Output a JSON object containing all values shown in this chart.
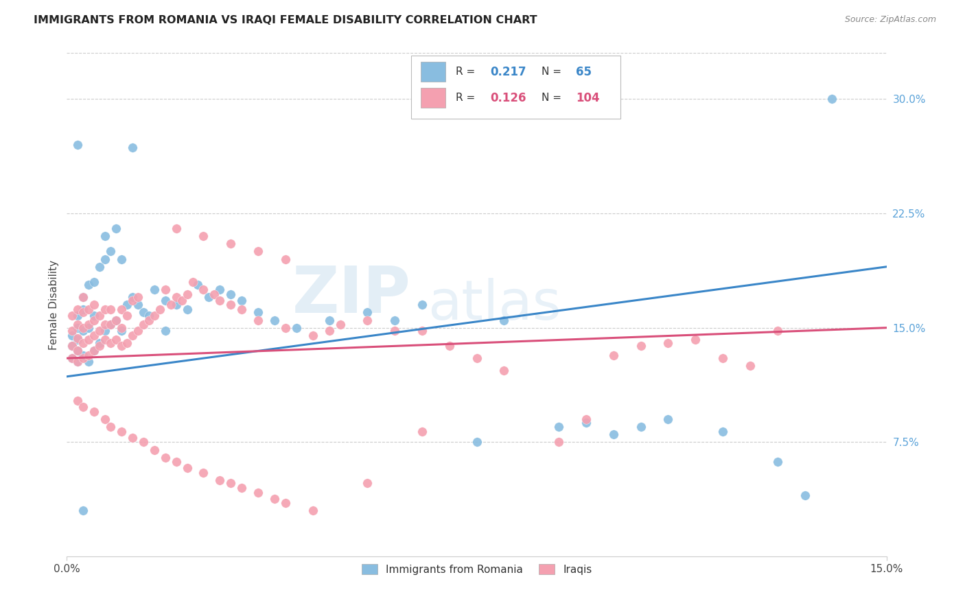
{
  "title": "IMMIGRANTS FROM ROMANIA VS IRAQI FEMALE DISABILITY CORRELATION CHART",
  "source": "Source: ZipAtlas.com",
  "ylabel": "Female Disability",
  "right_yticks": [
    "30.0%",
    "22.5%",
    "15.0%",
    "7.5%"
  ],
  "right_ytick_vals": [
    0.3,
    0.225,
    0.15,
    0.075
  ],
  "xmin": 0.0,
  "xmax": 0.15,
  "ymin": 0.0,
  "ymax": 0.33,
  "legend_romania_R": "0.217",
  "legend_romania_N": "65",
  "legend_iraqi_R": "0.126",
  "legend_iraqi_N": "104",
  "color_romania": "#89bde0",
  "color_iraqi": "#f4a0b0",
  "color_romania_line": "#3a86c8",
  "color_iraqi_line": "#d94f7a",
  "watermark_zip": "ZIP",
  "watermark_atlas": "atlas",
  "romania_x": [
    0.001,
    0.001,
    0.001,
    0.002,
    0.002,
    0.002,
    0.002,
    0.002,
    0.003,
    0.003,
    0.003,
    0.003,
    0.004,
    0.004,
    0.004,
    0.005,
    0.005,
    0.005,
    0.006,
    0.006,
    0.007,
    0.007,
    0.007,
    0.008,
    0.008,
    0.009,
    0.009,
    0.01,
    0.01,
    0.011,
    0.012,
    0.013,
    0.014,
    0.015,
    0.016,
    0.018,
    0.02,
    0.022,
    0.024,
    0.026,
    0.028,
    0.03,
    0.032,
    0.035,
    0.038,
    0.042,
    0.048,
    0.055,
    0.06,
    0.065,
    0.075,
    0.08,
    0.09,
    0.095,
    0.1,
    0.105,
    0.11,
    0.12,
    0.13,
    0.135,
    0.14,
    0.002,
    0.003,
    0.012,
    0.018
  ],
  "romania_y": [
    0.13,
    0.138,
    0.145,
    0.128,
    0.135,
    0.142,
    0.15,
    0.158,
    0.132,
    0.148,
    0.162,
    0.17,
    0.128,
    0.15,
    0.178,
    0.135,
    0.158,
    0.18,
    0.14,
    0.19,
    0.148,
    0.195,
    0.21,
    0.152,
    0.2,
    0.155,
    0.215,
    0.148,
    0.195,
    0.165,
    0.17,
    0.165,
    0.16,
    0.158,
    0.175,
    0.168,
    0.165,
    0.162,
    0.178,
    0.17,
    0.175,
    0.172,
    0.168,
    0.16,
    0.155,
    0.15,
    0.155,
    0.16,
    0.155,
    0.165,
    0.075,
    0.155,
    0.085,
    0.088,
    0.08,
    0.085,
    0.09,
    0.082,
    0.062,
    0.04,
    0.3,
    0.27,
    0.03,
    0.268,
    0.148
  ],
  "iraqi_x": [
    0.001,
    0.001,
    0.001,
    0.001,
    0.002,
    0.002,
    0.002,
    0.002,
    0.002,
    0.003,
    0.003,
    0.003,
    0.003,
    0.003,
    0.004,
    0.004,
    0.004,
    0.004,
    0.005,
    0.005,
    0.005,
    0.005,
    0.006,
    0.006,
    0.006,
    0.007,
    0.007,
    0.007,
    0.008,
    0.008,
    0.008,
    0.009,
    0.009,
    0.01,
    0.01,
    0.01,
    0.011,
    0.011,
    0.012,
    0.012,
    0.013,
    0.013,
    0.014,
    0.015,
    0.016,
    0.017,
    0.018,
    0.019,
    0.02,
    0.021,
    0.022,
    0.023,
    0.025,
    0.027,
    0.028,
    0.03,
    0.032,
    0.035,
    0.04,
    0.045,
    0.048,
    0.05,
    0.055,
    0.06,
    0.065,
    0.07,
    0.075,
    0.08,
    0.09,
    0.095,
    0.1,
    0.105,
    0.11,
    0.115,
    0.12,
    0.125,
    0.13,
    0.055,
    0.065,
    0.002,
    0.003,
    0.005,
    0.007,
    0.008,
    0.01,
    0.012,
    0.014,
    0.016,
    0.018,
    0.02,
    0.022,
    0.025,
    0.028,
    0.03,
    0.032,
    0.035,
    0.038,
    0.04,
    0.045,
    0.02,
    0.025,
    0.03,
    0.035,
    0.04
  ],
  "iraqi_y": [
    0.13,
    0.138,
    0.148,
    0.158,
    0.128,
    0.135,
    0.143,
    0.152,
    0.162,
    0.13,
    0.14,
    0.15,
    0.16,
    0.17,
    0.132,
    0.142,
    0.152,
    0.162,
    0.135,
    0.145,
    0.155,
    0.165,
    0.138,
    0.148,
    0.158,
    0.142,
    0.152,
    0.162,
    0.14,
    0.152,
    0.162,
    0.142,
    0.155,
    0.138,
    0.15,
    0.162,
    0.14,
    0.158,
    0.145,
    0.168,
    0.148,
    0.17,
    0.152,
    0.155,
    0.158,
    0.162,
    0.175,
    0.165,
    0.17,
    0.168,
    0.172,
    0.18,
    0.175,
    0.172,
    0.168,
    0.165,
    0.162,
    0.155,
    0.15,
    0.145,
    0.148,
    0.152,
    0.155,
    0.148,
    0.148,
    0.138,
    0.13,
    0.122,
    0.075,
    0.09,
    0.132,
    0.138,
    0.14,
    0.142,
    0.13,
    0.125,
    0.148,
    0.048,
    0.082,
    0.102,
    0.098,
    0.095,
    0.09,
    0.085,
    0.082,
    0.078,
    0.075,
    0.07,
    0.065,
    0.062,
    0.058,
    0.055,
    0.05,
    0.048,
    0.045,
    0.042,
    0.038,
    0.035,
    0.03,
    0.215,
    0.21,
    0.205,
    0.2,
    0.195
  ]
}
